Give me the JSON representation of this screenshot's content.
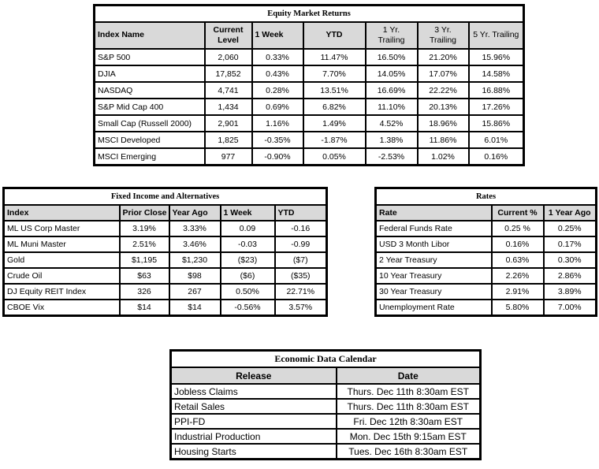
{
  "colors": {
    "header_bg": "#d9d9d9",
    "border": "#000000",
    "negative_text": "#ff0000"
  },
  "equity_table": {
    "title": "Equity Market Returns",
    "columns": [
      "Index Name",
      "Current Level",
      "1 Week",
      "YTD",
      "1 Yr. Trailing",
      "3 Yr. Trailing",
      "5 Yr. Trailing"
    ],
    "rows": [
      [
        "S&P 500",
        "2,060",
        "0.33%",
        "11.47%",
        "16.50%",
        "21.20%",
        "15.96%"
      ],
      [
        "DJIA",
        "17,852",
        "0.43%",
        "7.70%",
        "14.05%",
        "17.07%",
        "14.58%"
      ],
      [
        "NASDAQ",
        "4,741",
        "0.28%",
        "13.51%",
        "16.69%",
        "22.22%",
        "16.88%"
      ],
      [
        "S&P Mid Cap 400",
        "1,434",
        "0.69%",
        "6.82%",
        "11.10%",
        "20.13%",
        "17.26%"
      ],
      [
        "Small Cap (Russell 2000)",
        "2,901",
        "1.16%",
        "1.49%",
        "4.52%",
        "18.96%",
        "15.86%"
      ],
      [
        "MSCI Developed",
        "1,825",
        "-0.35%",
        "-1.87%",
        "1.38%",
        "11.86%",
        "6.01%"
      ],
      [
        "MSCI Emerging",
        "977",
        "-0.90%",
        "0.05%",
        "-2.53%",
        "1.02%",
        "0.16%"
      ]
    ]
  },
  "fixed_income_table": {
    "title": "Fixed Income and Alternatives",
    "columns": [
      "Index",
      "Prior Close",
      "Year Ago",
      "1 Week",
      "YTD"
    ],
    "rows": [
      [
        "ML US Corp Master",
        "3.19%",
        "3.33%",
        "0.09",
        "-0.16"
      ],
      [
        "ML Muni Master",
        "2.51%",
        "3.46%",
        "-0.03",
        "-0.99"
      ],
      [
        "Gold",
        "$1,195",
        "$1,230",
        "($23)",
        "($7)"
      ],
      [
        "Crude Oil",
        "$63",
        "$98",
        "($6)",
        "($35)"
      ],
      [
        "DJ Equity REIT Index",
        "326",
        "267",
        "0.50%",
        "22.71%"
      ],
      [
        "CBOE Vix",
        "$14",
        "$14",
        "-0.56%",
        "3.57%"
      ]
    ]
  },
  "rates_table": {
    "title": "Rates",
    "columns": [
      "Rate",
      "Current %",
      "1 Year Ago"
    ],
    "rows": [
      [
        "Federal Funds Rate",
        "0.25 %",
        "0.25%"
      ],
      [
        "USD 3 Month Libor",
        "0.16%",
        "0.17%"
      ],
      [
        "2 Year Treasury",
        "0.63%",
        "0.30%"
      ],
      [
        "10 Year Treasury",
        "2.26%",
        "2.86%"
      ],
      [
        "30 Year Treasury",
        "2.91%",
        "3.89%"
      ],
      [
        "Unemployment Rate",
        "5.80%",
        "7.00%"
      ]
    ]
  },
  "calendar_table": {
    "title": "Economic Data Calendar",
    "columns": [
      "Release",
      "Date"
    ],
    "rows": [
      [
        "Jobless Claims",
        "Thurs. Dec 11th 8:30am EST"
      ],
      [
        "Retail Sales",
        "Thurs. Dec 11th 8:30am EST"
      ],
      [
        "PPI-FD",
        "Fri. Dec 12th 8:30am EST"
      ],
      [
        "Industrial Production",
        "Mon. Dec 15th 9:15am EST"
      ],
      [
        "Housing Starts",
        "Tues. Dec 16th 8:30am EST"
      ]
    ]
  }
}
